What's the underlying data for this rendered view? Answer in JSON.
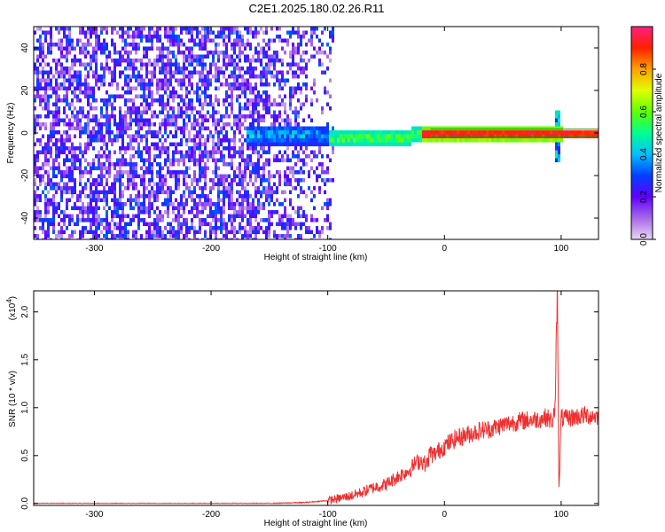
{
  "title": "C2E1.2025.180.02.26.R11",
  "chart_data": [
    {
      "type": "heatmap",
      "xlabel": "Height of straight line (km)",
      "ylabel": "Frequency (Hz)",
      "xlim": [
        -352,
        132
      ],
      "ylim": [
        -50,
        50
      ],
      "xticks": [
        -300,
        -200,
        -100,
        0,
        100
      ],
      "yticks": [
        -40,
        -20,
        0,
        20,
        40
      ],
      "colorbar": {
        "label": "Normalized spectral amplitude",
        "range": [
          0.0,
          1.0
        ],
        "ticks": [
          0.0,
          0.2,
          0.4,
          0.6,
          0.8
        ],
        "colors": [
          "#e8d8f4",
          "#a868e8",
          "#6000ff",
          "#0040ff",
          "#00c0ff",
          "#00ff90",
          "#60ff00",
          "#e0ff00",
          "#ffa000",
          "#ff2000",
          "#ff2080"
        ]
      },
      "features": {
        "noise_region_x": [
          -352,
          -95
        ],
        "noise_amplitude": 0.3,
        "carrier_line_freq": 0,
        "carrier_start_x": -20,
        "carrier_amplitude": 0.95,
        "spike_x": 95
      }
    },
    {
      "type": "line",
      "xlabel": "Height of straight line (km)",
      "ylabel": "SNR (10 * v/v)",
      "yscale_label": "(x10",
      "yscale_exp": "4",
      "xlim": [
        -352,
        132
      ],
      "ylim": [
        -0.02,
        2.22
      ],
      "xticks": [
        -300,
        -200,
        -100,
        0,
        100
      ],
      "yticks": [
        0.0,
        0.5,
        1.0,
        1.5,
        2.0
      ],
      "series_color": "#ee3030",
      "series": [
        {
          "x": [
            -352,
            -300,
            -250,
            -200,
            -150,
            -120,
            -100,
            -80,
            -70,
            -60,
            -50,
            -40,
            -30,
            -25,
            -20,
            -15,
            -12,
            -10,
            -5,
            0,
            10,
            20,
            30,
            40,
            50,
            60,
            70,
            80,
            88,
            92,
            95,
            97,
            98,
            100,
            103,
            110,
            120,
            132
          ],
          "y": [
            0.0,
            0.0,
            0.0,
            0.0,
            0.0,
            0.01,
            0.03,
            0.08,
            0.12,
            0.17,
            0.2,
            0.28,
            0.35,
            0.42,
            0.45,
            0.4,
            0.55,
            0.5,
            0.55,
            0.6,
            0.68,
            0.72,
            0.76,
            0.78,
            0.82,
            0.85,
            0.87,
            0.88,
            0.9,
            0.85,
            1.0,
            2.18,
            0.1,
            0.9,
            0.88,
            0.9,
            0.92,
            0.91
          ]
        }
      ]
    }
  ]
}
